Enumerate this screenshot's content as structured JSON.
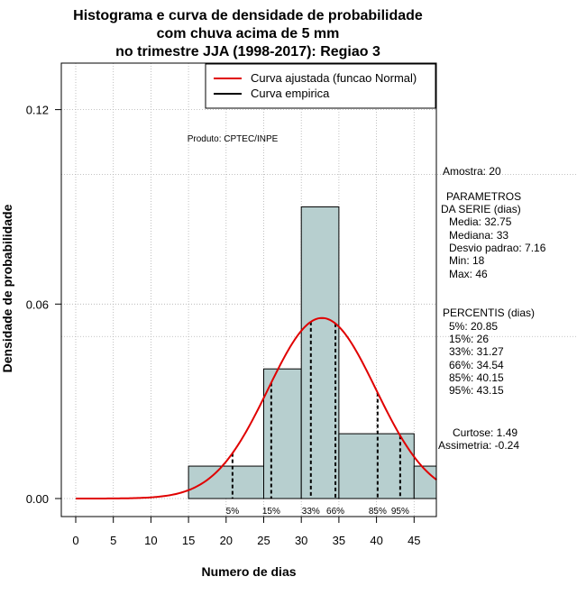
{
  "chart_data": {
    "type": "bar",
    "title": [
      "Histograma e curva de densidade de probabilidade",
      "com chuva acima de 5 mm",
      "no trimestre JJA (1998-2017): Regiao 3"
    ],
    "xlabel": "Numero de dias",
    "ylabel": "Densidade de probabilidade",
    "xlim": [
      -2,
      48
    ],
    "ylim": [
      -0.005,
      0.13
    ],
    "xticks": [
      0,
      5,
      10,
      15,
      20,
      25,
      30,
      35,
      40,
      45
    ],
    "yticks": [
      0.0,
      0.06,
      0.12
    ],
    "ytick_labels": [
      "0.00",
      "0.06",
      "0.12"
    ],
    "grid_x": [
      0,
      5,
      10,
      15,
      20,
      25,
      30,
      35,
      40,
      45
    ],
    "grid_y": [
      0.0,
      0.06,
      0.12
    ],
    "extra_hlines": [
      0.05,
      0.1
    ],
    "bins": [
      {
        "x0": 15,
        "x1": 25,
        "density": 0.01
      },
      {
        "x0": 25,
        "x1": 30,
        "density": 0.04
      },
      {
        "x0": 30,
        "x1": 35,
        "density": 0.09
      },
      {
        "x0": 35,
        "x1": 45,
        "density": 0.02
      },
      {
        "x0": 45,
        "x1": 50,
        "density": 0.01
      }
    ],
    "normal_fit": {
      "mean": 32.75,
      "sd": 7.16,
      "x_from": 0,
      "x_to": 48
    },
    "percentile_lines": [
      {
        "label": "5%",
        "value": 20.85
      },
      {
        "label": "15%",
        "value": 26
      },
      {
        "label": "33%",
        "value": 31.27
      },
      {
        "label": "66%",
        "value": 34.54
      },
      {
        "label": "85%",
        "value": 40.15
      },
      {
        "label": "95%",
        "value": 43.15
      }
    ],
    "legend": [
      {
        "label": "Curva ajustada (funcao Normal)",
        "color": "#e00000"
      },
      {
        "label": "Curva empirica",
        "color": "#000000"
      }
    ],
    "legend_position": "top-right",
    "product_note": "Produto: CPTEC/INPE"
  },
  "side_panel": {
    "amostra": "Amostra: 20",
    "params_title_1": "PARAMETROS",
    "params_title_2": "DA SERIE (dias)",
    "media": "Media: 32.75",
    "mediana": "Mediana: 33",
    "desvio": "Desvio padrao: 7.16",
    "min": "Min: 18",
    "max": "Max: 46",
    "percentis_title": "PERCENTIS (dias)",
    "p5": "5%: 20.85",
    "p15": "15%: 26",
    "p33": "33%: 31.27",
    "p66": "66%: 34.54",
    "p85": "85%: 40.15",
    "p95": "95%: 43.15",
    "curtose": "Curtose: 1.49",
    "assimetria": "Assimetria: -0.24"
  },
  "colors": {
    "bar_fill": "#b7cfcf",
    "curve": "#e00000",
    "grid": "#b0b0b0"
  }
}
